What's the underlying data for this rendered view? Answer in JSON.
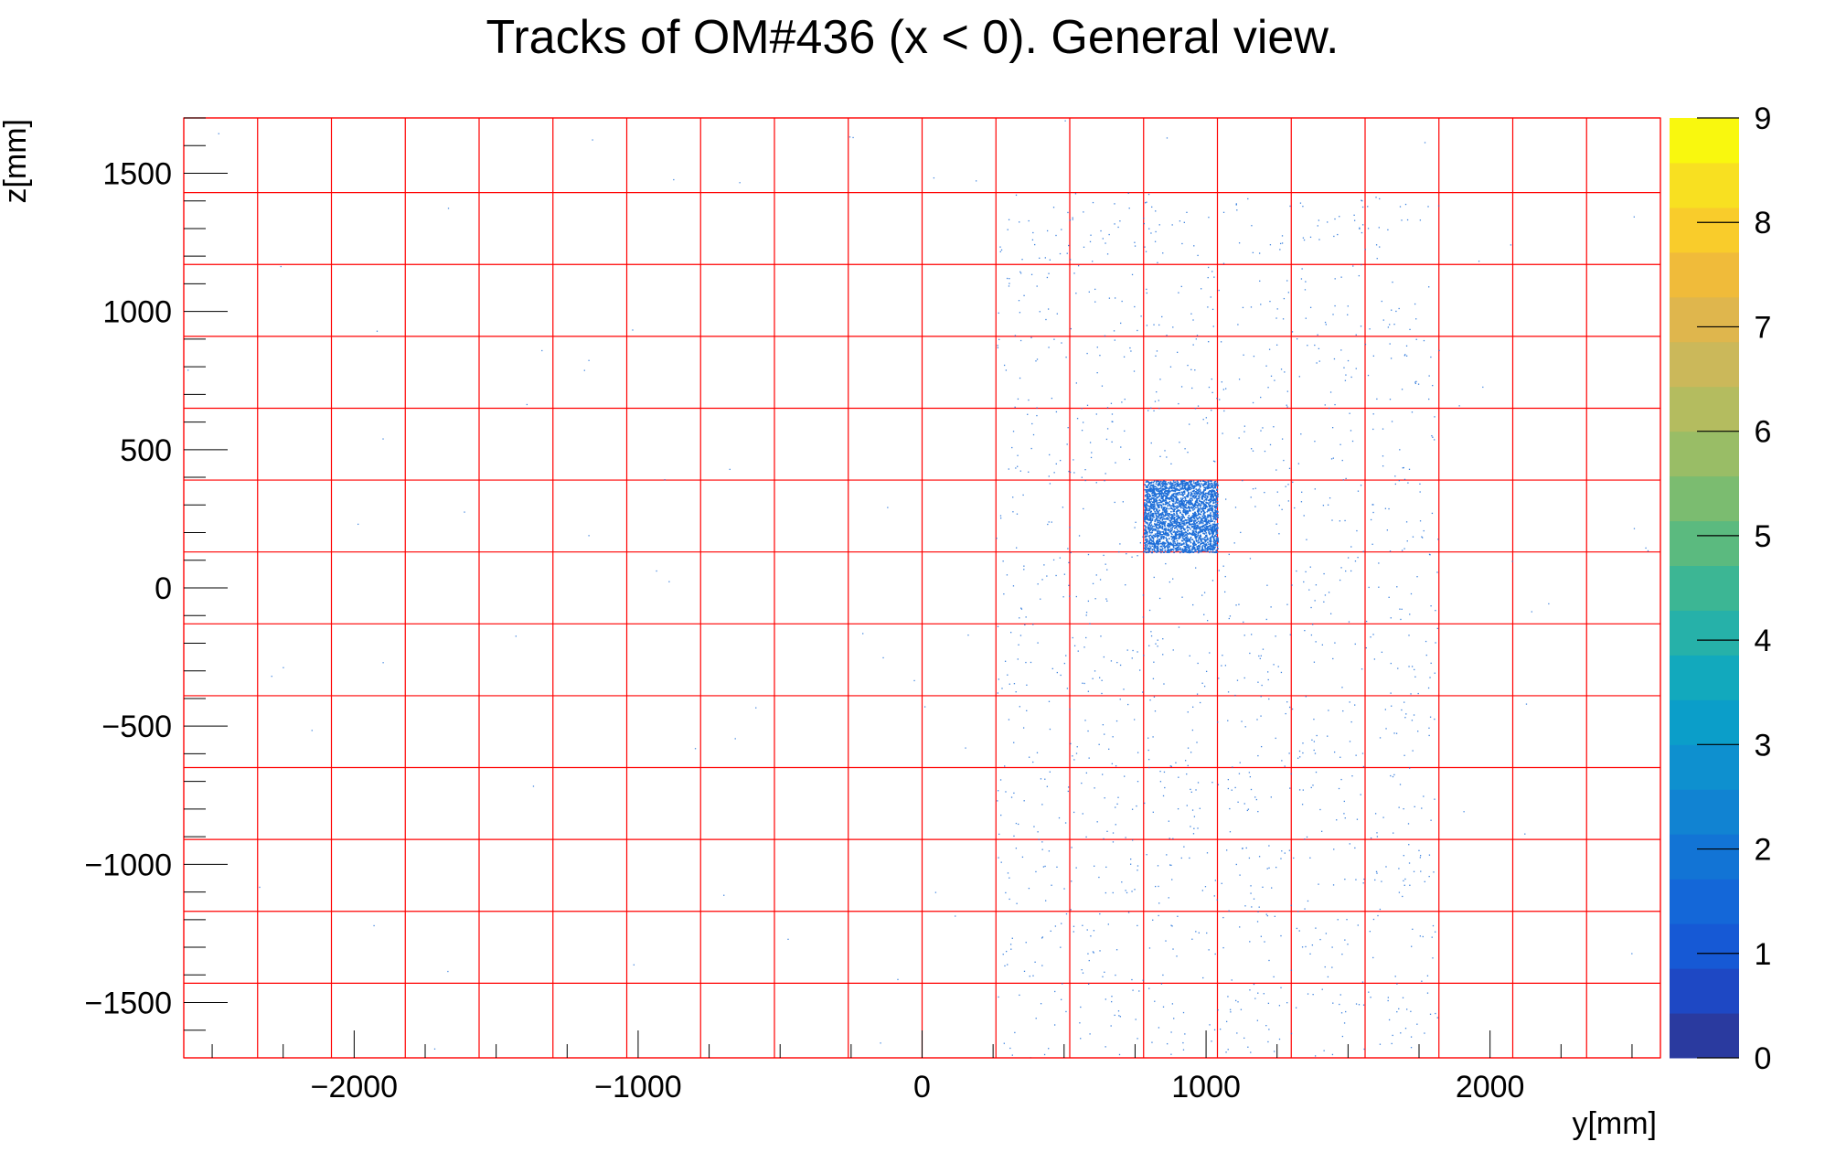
{
  "chart_data": {
    "type": "heatmap",
    "title": "Tracks of OM#436 (x < 0). General view.",
    "xlabel": "y[mm]",
    "ylabel": "z[mm]",
    "xlim": [
      -2600,
      2600
    ],
    "ylim": [
      -1700,
      1700
    ],
    "x_ticks": [
      -2000,
      -1000,
      0,
      1000,
      2000
    ],
    "x_tick_labels": [
      "−2000",
      "−1000",
      "0",
      "1000",
      "2000"
    ],
    "y_ticks": [
      -1500,
      -1000,
      -500,
      0,
      500,
      1000,
      1500
    ],
    "y_tick_labels": [
      "−1500",
      "−1000",
      "−500",
      "0",
      "500",
      "1000",
      "1500"
    ],
    "colorbar": {
      "min": 0,
      "max": 9,
      "ticks": [
        0,
        1,
        2,
        3,
        4,
        5,
        6,
        7,
        8,
        9
      ],
      "tick_labels": [
        "0",
        "1",
        "2",
        "3",
        "4",
        "5",
        "6",
        "7",
        "8",
        "9"
      ],
      "colors": [
        "#2a3a9f",
        "#1e48c4",
        "#1659d5",
        "#1467d8",
        "#1274d5",
        "#1183d2",
        "#0e90cf",
        "#0b9ec9",
        "#12a9bd",
        "#26b1a9",
        "#3cb694",
        "#5bba7f",
        "#7bbc70",
        "#99bd66",
        "#b4bc5f",
        "#cbb85a",
        "#dfb64d",
        "#f0bb3a",
        "#f9cc2b",
        "#f8e021",
        "#f9f80e"
      ]
    },
    "grid": {
      "color": "#ff0000",
      "y_lines": [
        -2600,
        -2340,
        -2080,
        -1820,
        -1560,
        -1300,
        -1040,
        -780,
        -520,
        -260,
        0,
        260,
        520,
        780,
        1040,
        1300,
        1560,
        1820,
        2080,
        2340,
        2600
      ],
      "z_lines": [
        -1700,
        -1430,
        -1170,
        -910,
        -650,
        -390,
        -130,
        130,
        390,
        650,
        910,
        1170,
        1430,
        1700
      ]
    },
    "dense_region": {
      "y": [
        780,
        1040
      ],
      "z": [
        130,
        390
      ],
      "level": 1
    },
    "sparse_region": {
      "y": [
        260,
        1820
      ],
      "z": [
        -1700,
        1430
      ],
      "level": 1
    },
    "marker_color": "#1f6fd8"
  }
}
